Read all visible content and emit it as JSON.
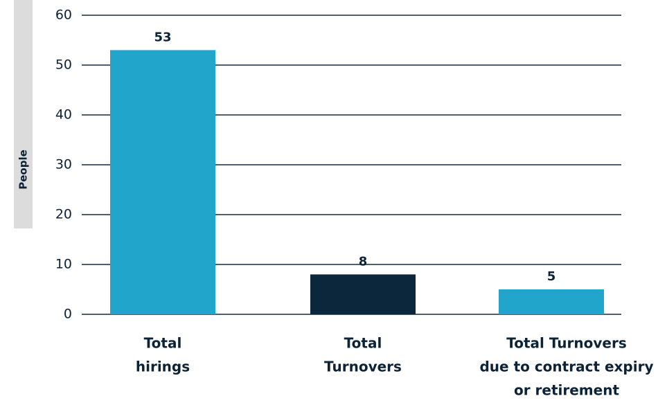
{
  "chart_data": {
    "type": "bar",
    "y_label": "People",
    "categories": [
      [
        "Total",
        "hirings"
      ],
      [
        "Total",
        "Turnovers"
      ],
      [
        "Total Turnovers",
        "due to contract expiry",
        "or retirement"
      ]
    ],
    "values": [
      53,
      8,
      5
    ],
    "colors": [
      "#22a5cb",
      "#0c263c",
      "#22a5cb"
    ],
    "ylim": [
      0,
      60
    ],
    "yticks": [
      0,
      10,
      20,
      30,
      40,
      50,
      60
    ],
    "grid": true
  }
}
